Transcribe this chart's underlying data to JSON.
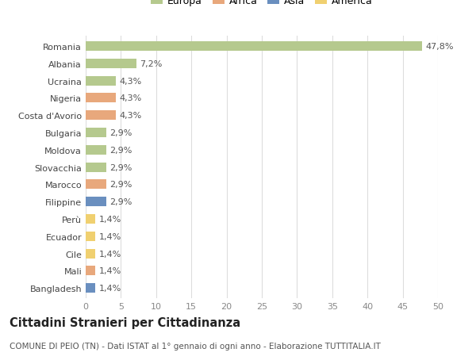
{
  "countries": [
    "Romania",
    "Albania",
    "Ucraina",
    "Nigeria",
    "Costa d'Avorio",
    "Bulgaria",
    "Moldova",
    "Slovacchia",
    "Marocco",
    "Filippine",
    "Perù",
    "Ecuador",
    "Cile",
    "Mali",
    "Bangladesh"
  ],
  "values": [
    47.8,
    7.2,
    4.3,
    4.3,
    4.3,
    2.9,
    2.9,
    2.9,
    2.9,
    2.9,
    1.4,
    1.4,
    1.4,
    1.4,
    1.4
  ],
  "labels": [
    "47,8%",
    "7,2%",
    "4,3%",
    "4,3%",
    "4,3%",
    "2,9%",
    "2,9%",
    "2,9%",
    "2,9%",
    "2,9%",
    "1,4%",
    "1,4%",
    "1,4%",
    "1,4%",
    "1,4%"
  ],
  "continents": [
    "Europa",
    "Europa",
    "Europa",
    "Africa",
    "Africa",
    "Europa",
    "Europa",
    "Europa",
    "Africa",
    "Asia",
    "America",
    "America",
    "America",
    "Africa",
    "Asia"
  ],
  "colors": {
    "Europa": "#b5c98e",
    "Africa": "#e8a87c",
    "Asia": "#6a8fbf",
    "America": "#f0d070"
  },
  "legend_colors": {
    "Europa": "#b5c98e",
    "Africa": "#e8a87c",
    "Asia": "#6a8fbf",
    "America": "#f0d070"
  },
  "legend_order": [
    "Europa",
    "Africa",
    "Asia",
    "America"
  ],
  "xlim": [
    0,
    50
  ],
  "xticks": [
    0,
    5,
    10,
    15,
    20,
    25,
    30,
    35,
    40,
    45,
    50
  ],
  "title": "Cittadini Stranieri per Cittadinanza",
  "subtitle": "COMUNE DI PEIO (TN) - Dati ISTAT al 1° gennaio di ogni anno - Elaborazione TUTTITALIA.IT",
  "background_color": "#ffffff",
  "grid_color": "#dddddd",
  "bar_height": 0.55,
  "label_fontsize": 8,
  "tick_fontsize": 8,
  "title_fontsize": 10.5,
  "subtitle_fontsize": 7.5
}
